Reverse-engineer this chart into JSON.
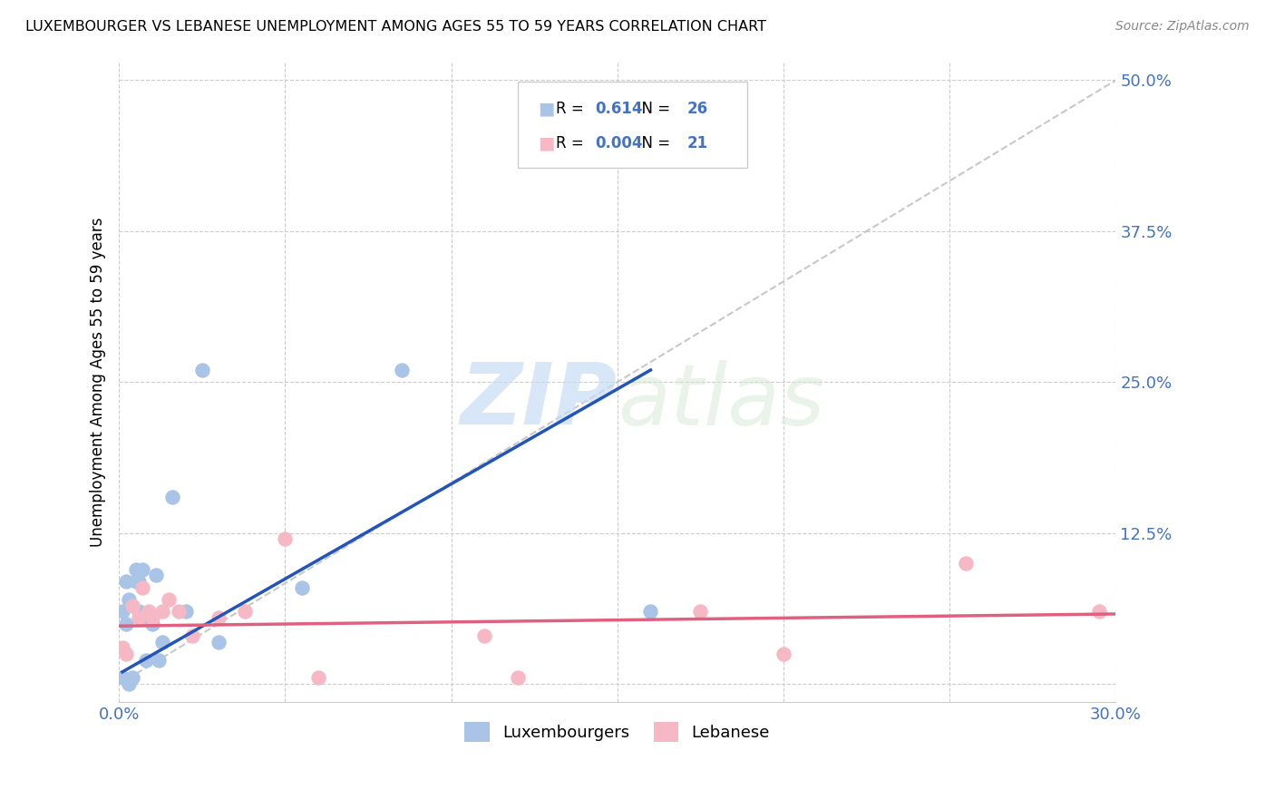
{
  "title": "LUXEMBOURGER VS LEBANESE UNEMPLOYMENT AMONG AGES 55 TO 59 YEARS CORRELATION CHART",
  "source": "Source: ZipAtlas.com",
  "ylabel": "Unemployment Among Ages 55 to 59 years",
  "xlim": [
    0.0,
    0.3
  ],
  "ylim": [
    -0.015,
    0.515
  ],
  "xticks": [
    0.0,
    0.05,
    0.1,
    0.15,
    0.2,
    0.25,
    0.3
  ],
  "xticklabels": [
    "0.0%",
    "",
    "",
    "",
    "",
    "",
    "30.0%"
  ],
  "yticks": [
    0.0,
    0.125,
    0.25,
    0.375,
    0.5
  ],
  "yticklabels": [
    "",
    "12.5%",
    "25.0%",
    "37.5%",
    "50.0%"
  ],
  "grid_color": "#cccccc",
  "lux_color": "#aac4e8",
  "leb_color": "#f5b8c4",
  "lux_line_color": "#2255bb",
  "leb_line_color": "#e06080",
  "diag_color": "#c8c8c8",
  "watermark_zip": "ZIP",
  "watermark_atlas": "atlas",
  "lux_R": "0.614",
  "lux_N": "26",
  "leb_R": "0.004",
  "leb_N": "21",
  "legend_labels": [
    "Luxembourgers",
    "Lebanese"
  ],
  "lux_x": [
    0.001,
    0.001,
    0.002,
    0.002,
    0.003,
    0.003,
    0.004,
    0.005,
    0.005,
    0.006,
    0.006,
    0.007,
    0.007,
    0.008,
    0.009,
    0.01,
    0.011,
    0.012,
    0.013,
    0.016,
    0.02,
    0.025,
    0.03,
    0.055,
    0.085,
    0.16
  ],
  "lux_y": [
    0.005,
    0.06,
    0.05,
    0.085,
    0.0,
    0.07,
    0.005,
    0.085,
    0.095,
    0.06,
    0.085,
    0.055,
    0.095,
    0.02,
    0.055,
    0.05,
    0.09,
    0.02,
    0.035,
    0.155,
    0.06,
    0.26,
    0.035,
    0.08,
    0.26,
    0.06
  ],
  "leb_x": [
    0.001,
    0.002,
    0.004,
    0.006,
    0.007,
    0.009,
    0.01,
    0.013,
    0.015,
    0.018,
    0.022,
    0.03,
    0.038,
    0.05,
    0.06,
    0.11,
    0.12,
    0.175,
    0.2,
    0.255,
    0.295
  ],
  "leb_y": [
    0.03,
    0.025,
    0.065,
    0.055,
    0.08,
    0.06,
    0.055,
    0.06,
    0.07,
    0.06,
    0.04,
    0.055,
    0.06,
    0.12,
    0.005,
    0.04,
    0.005,
    0.06,
    0.025,
    0.1,
    0.06
  ],
  "lux_line_x": [
    0.001,
    0.16
  ],
  "lux_line_y": [
    0.01,
    0.26
  ],
  "leb_line_x": [
    0.0,
    0.3
  ],
  "leb_line_y": [
    0.048,
    0.058
  ]
}
